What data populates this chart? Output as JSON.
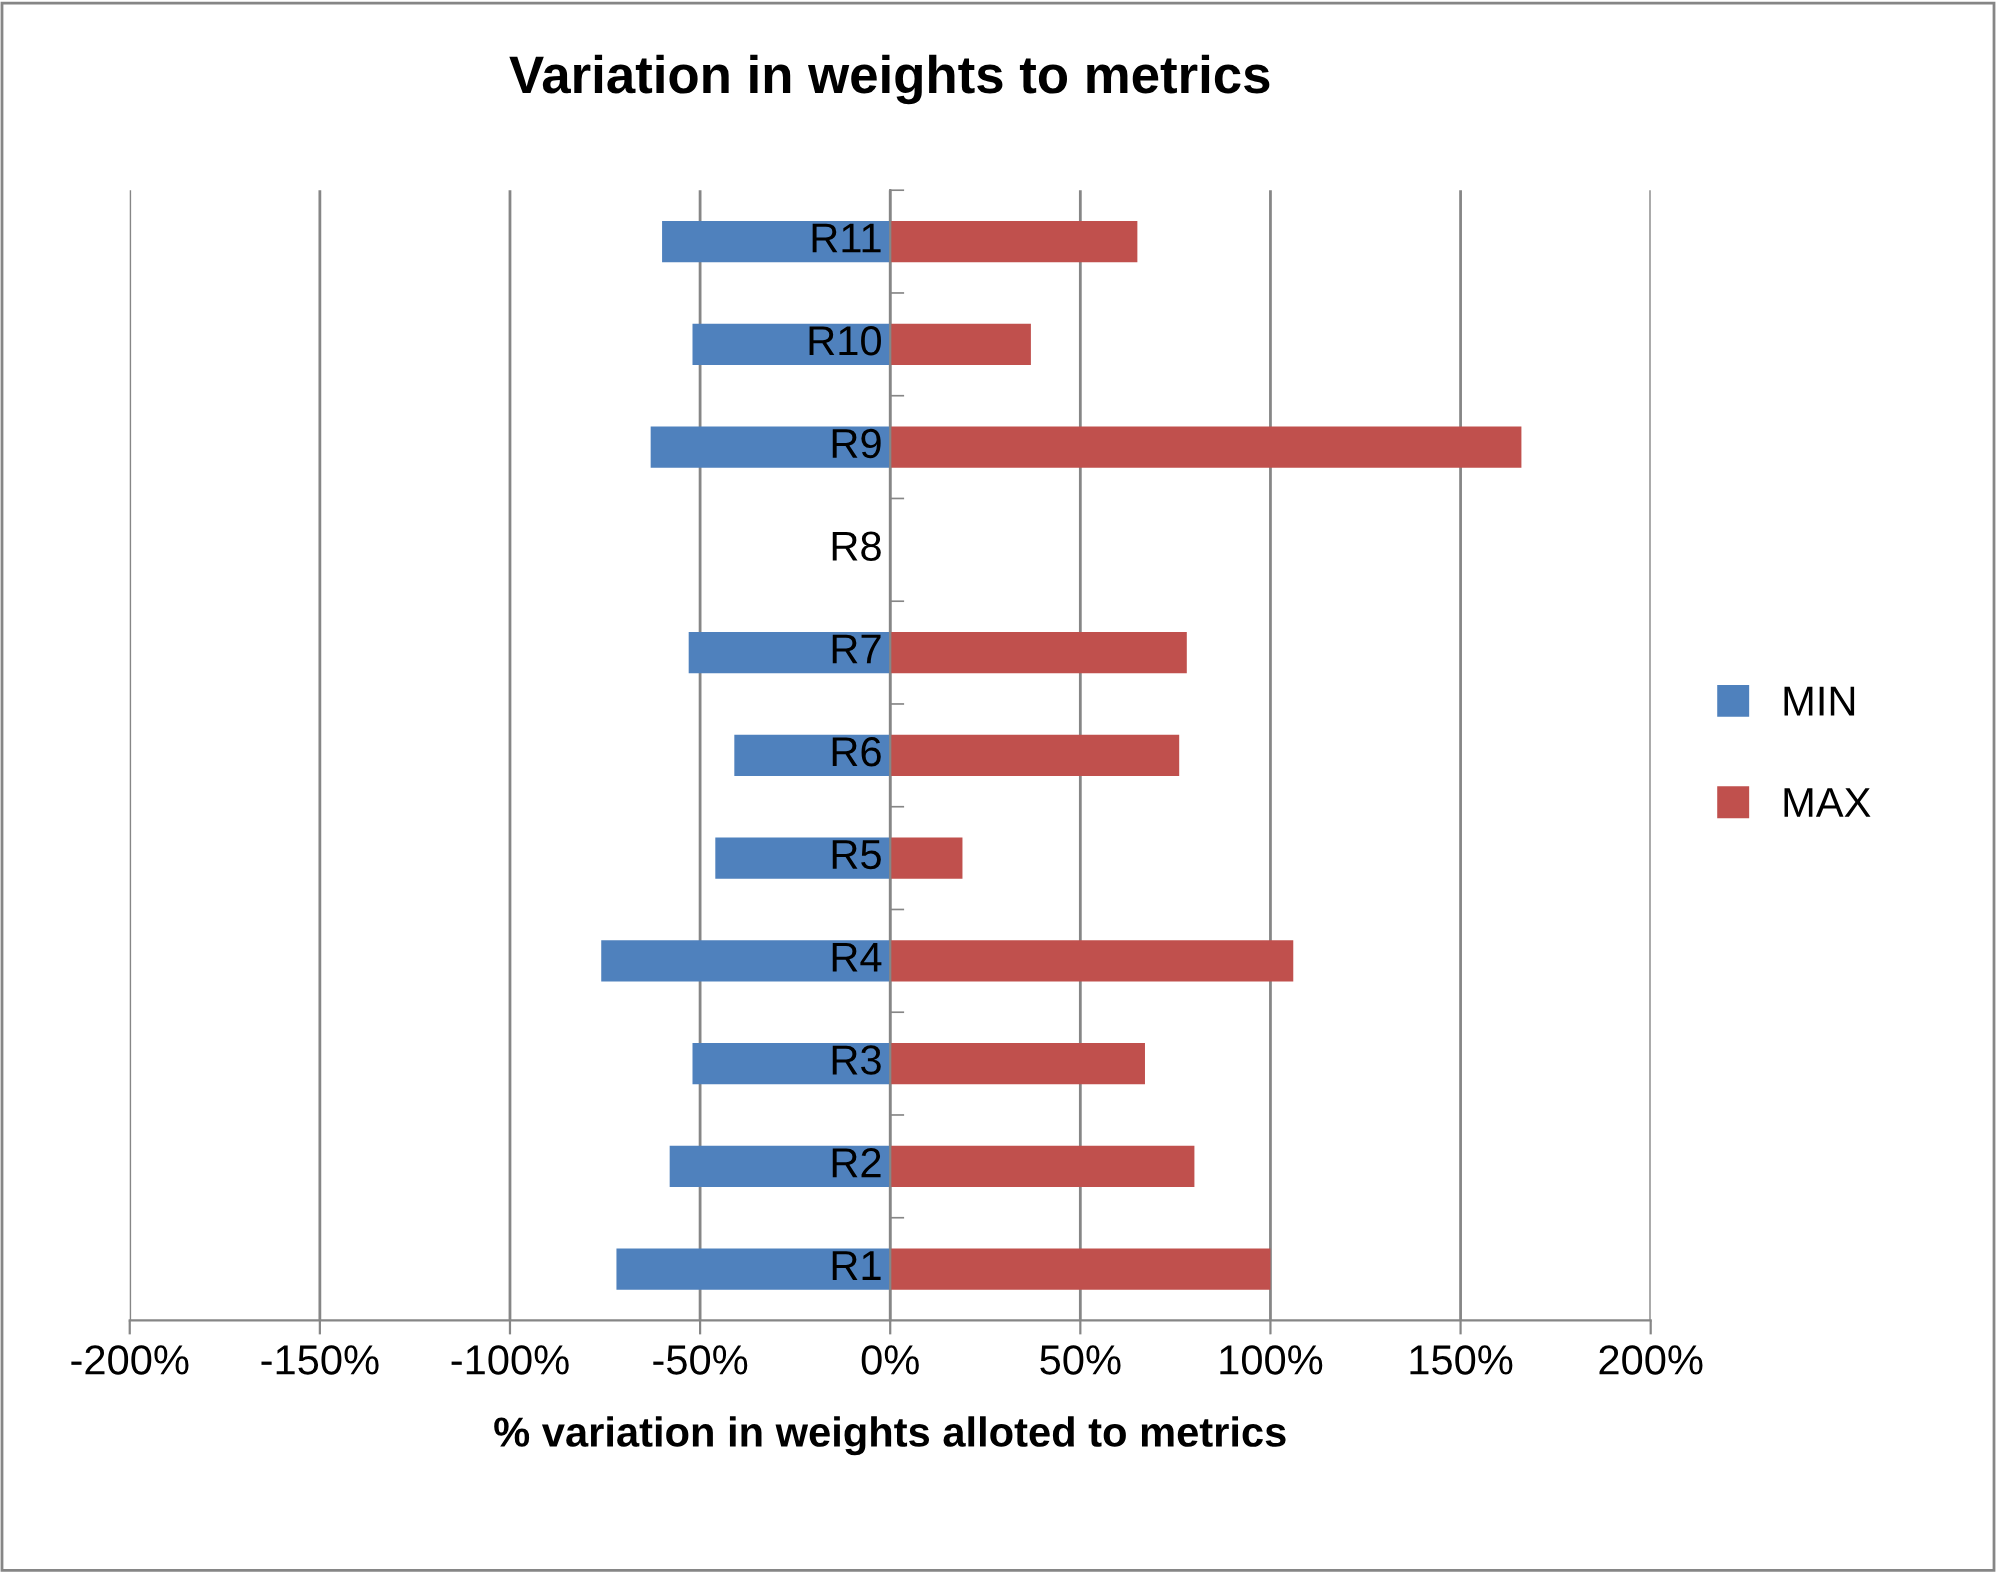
{
  "chart_data": {
    "type": "bar",
    "orientation": "horizontal",
    "stacked": true,
    "title": "Variation in weights to metrics",
    "xlabel": "% variation in weights alloted to metrics",
    "categories": [
      "R11",
      "R10",
      "R9",
      "R8",
      "R7",
      "R6",
      "R5",
      "R4",
      "R3",
      "R2",
      "R1"
    ],
    "series": [
      {
        "name": "MIN",
        "color": "#4f81bd",
        "values": [
          -60,
          -52,
          -63,
          null,
          -53,
          -41,
          -46,
          -76,
          -52,
          -58,
          -72
        ]
      },
      {
        "name": "MAX",
        "color": "#c0504d",
        "values": [
          65,
          37,
          166,
          null,
          78,
          76,
          19,
          106,
          67,
          80,
          100
        ]
      }
    ],
    "xlim": [
      -200,
      200
    ],
    "xticks": [
      {
        "value": -200,
        "label": "-200%"
      },
      {
        "value": -150,
        "label": "-150%"
      },
      {
        "value": -100,
        "label": "-100%"
      },
      {
        "value": -50,
        "label": "-50%"
      },
      {
        "value": 0,
        "label": "0%"
      },
      {
        "value": 50,
        "label": "50%"
      },
      {
        "value": 100,
        "label": "100%"
      },
      {
        "value": 150,
        "label": "150%"
      },
      {
        "value": 200,
        "label": "200%"
      }
    ],
    "grid": "x",
    "legend": "right"
  }
}
